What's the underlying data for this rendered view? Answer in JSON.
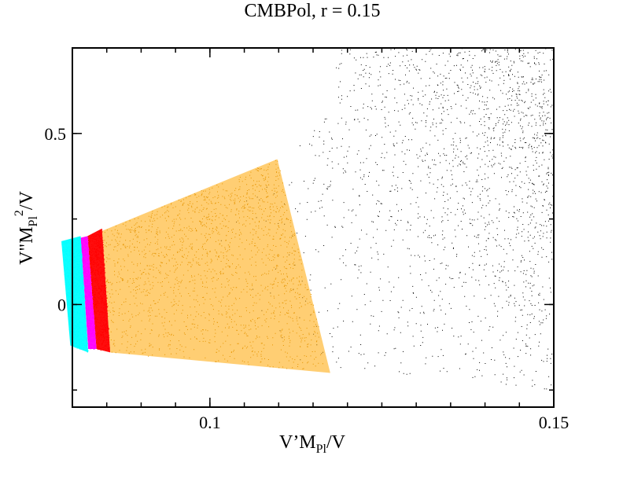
{
  "chart_data": {
    "type": "scatter",
    "title": "CMBPol, r = 0.15",
    "xlabel": {
      "base": "V’M",
      "sub": "Pl",
      "tail": "/V"
    },
    "ylabel": {
      "base": "V\"M",
      "sub": "Pl",
      "sup": "2",
      "tail": "/V"
    },
    "xlim": [
      0.08,
      0.15
    ],
    "ylim": [
      -0.3,
      0.75
    ],
    "xticks": [
      {
        "value": 0.1,
        "label": "0.1"
      },
      {
        "value": 0.15,
        "label": "0.15"
      }
    ],
    "yticks": [
      {
        "value": 0,
        "label": "0"
      },
      {
        "value": 0.5,
        "label": "0.5"
      }
    ],
    "x_minor_step": 0.005,
    "y_minor_step": 0.25,
    "grid": false,
    "legend": false,
    "series": [
      {
        "color": "#000000",
        "kind": "scatter-cloud",
        "region": {
          "x_min": 0.1,
          "x_max": 0.15,
          "y_min": -0.25,
          "y_max": 0.75
        },
        "approx_count": 9000
      },
      {
        "color": "#FFA500",
        "kind": "wedge",
        "corners": [
          {
            "x": 0.0843,
            "y": 0.215
          },
          {
            "x": 0.1098,
            "y": 0.425
          },
          {
            "x": 0.1175,
            "y": -0.2
          },
          {
            "x": 0.0855,
            "y": -0.14
          }
        ]
      },
      {
        "color": "#FF0000",
        "kind": "band",
        "corners": [
          {
            "x": 0.0822,
            "y": 0.2
          },
          {
            "x": 0.0843,
            "y": 0.222
          },
          {
            "x": 0.0855,
            "y": -0.14
          },
          {
            "x": 0.0835,
            "y": -0.13
          }
        ]
      },
      {
        "color": "#FF00FF",
        "kind": "band",
        "corners": [
          {
            "x": 0.0812,
            "y": 0.195
          },
          {
            "x": 0.0822,
            "y": 0.2
          },
          {
            "x": 0.0835,
            "y": -0.13
          },
          {
            "x": 0.0823,
            "y": -0.13
          }
        ]
      },
      {
        "color": "#00FFFF",
        "kind": "band",
        "corners": [
          {
            "x": 0.0784,
            "y": 0.185
          },
          {
            "x": 0.0812,
            "y": 0.2
          },
          {
            "x": 0.0823,
            "y": -0.14
          },
          {
            "x": 0.0797,
            "y": -0.12
          }
        ]
      }
    ]
  }
}
